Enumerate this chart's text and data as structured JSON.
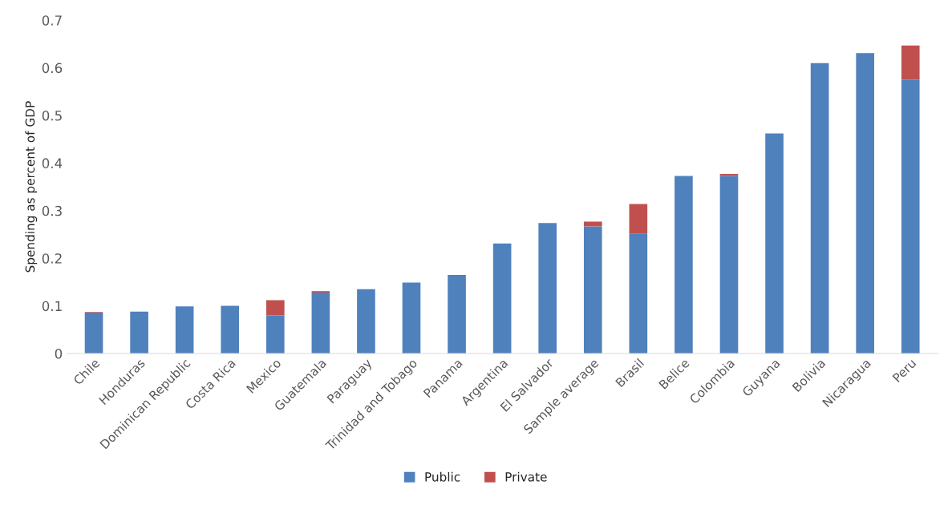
{
  "chart_data": {
    "type": "bar",
    "stacked": true,
    "ylabel": "Spending as percent of GDP",
    "categories": [
      "Chile",
      "Honduras",
      "Dominican Republic",
      "Costa Rica",
      "Mexico",
      "Guatemala",
      "Paraguay",
      "Trinidad and Tobago",
      "Panama",
      "Argentina",
      "El Salvador",
      "Sample average",
      "Brasil",
      "Belice",
      "Colombia",
      "Guyana",
      "Bolivia",
      "Nicaragua",
      "Peru"
    ],
    "series": [
      {
        "name": "Public",
        "color": "#4f81bd",
        "values": [
          0.086,
          0.088,
          0.099,
          0.1,
          0.08,
          0.128,
          0.135,
          0.149,
          0.165,
          0.231,
          0.274,
          0.267,
          0.252,
          0.373,
          0.373,
          0.462,
          0.61,
          0.631,
          0.575
        ]
      },
      {
        "name": "Private",
        "color": "#c0504d",
        "values": [
          0.001,
          0,
          0,
          0,
          0.032,
          0.003,
          0,
          0,
          0,
          0,
          0,
          0.01,
          0.062,
          0,
          0.004,
          0,
          0,
          0,
          0.072
        ]
      }
    ],
    "ylim": [
      0,
      0.7
    ],
    "yticks": [
      {
        "value": 0,
        "label": "0"
      },
      0.1,
      0.2,
      0.3,
      0.4,
      0.5,
      0.6,
      0.7
    ],
    "grid": false,
    "legend": "bottom"
  }
}
